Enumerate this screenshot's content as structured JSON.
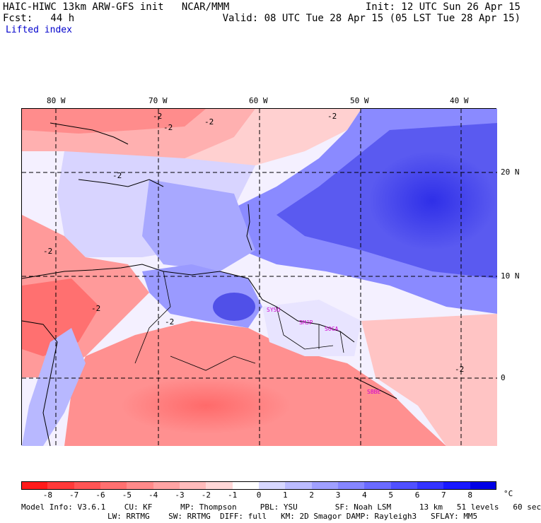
{
  "header": {
    "line1_left": "HAIC-HIWC 13km ARW-GFS init   NCAR/MMM",
    "line1_right": "Init: 12 UTC Sun 26 Apr 15",
    "line2_left": "Fcst:   44 h",
    "line2_right": "Valid: 08 UTC Tue 28 Apr 15 (05 LST Tue 28 Apr 15)",
    "field_name": "Lifted index"
  },
  "map": {
    "lon_labels": [
      "80 W",
      "70 W",
      "60 W",
      "50 W",
      "40 W"
    ],
    "lat_labels": [
      "20 N",
      "10 N",
      "0"
    ],
    "contour_labels": [
      "-2",
      "-2",
      "-2",
      "-2",
      "-2",
      "-2",
      "-2",
      "-2",
      "-2"
    ],
    "stations": [
      "SYSU",
      "SMJP",
      "SOCA",
      "SBBE"
    ]
  },
  "colorbar": {
    "unit": "°C",
    "ticks": [
      "-8",
      "-7",
      "-6",
      "-5",
      "-4",
      "-3",
      "-2",
      "-1",
      "0",
      "1",
      "2",
      "3",
      "4",
      "5",
      "6",
      "7",
      "8"
    ],
    "colors": [
      "#ff1a1a",
      "#ff3a3a",
      "#ff5555",
      "#ff7070",
      "#ff8a8a",
      "#ffa4a4",
      "#ffbcbc",
      "#ffd8d8",
      "#ffffff",
      "#d8d8ff",
      "#bcbcff",
      "#a0a0ff",
      "#8686ff",
      "#6a6aff",
      "#5050ff",
      "#3434ff",
      "#1818ff",
      "#0000e6"
    ]
  },
  "model_info": {
    "line1": "Model Info: V3.6.1    CU: KF      MP: Thompson     PBL: YSU        SF: Noah LSM      13 km   51 levels   60 sec",
    "line2": "LW: RRTMG    SW: RRTMG  DIFF: full   KM: 2D Smagor DAMP: Rayleigh3   SFLAY: MM5"
  }
}
